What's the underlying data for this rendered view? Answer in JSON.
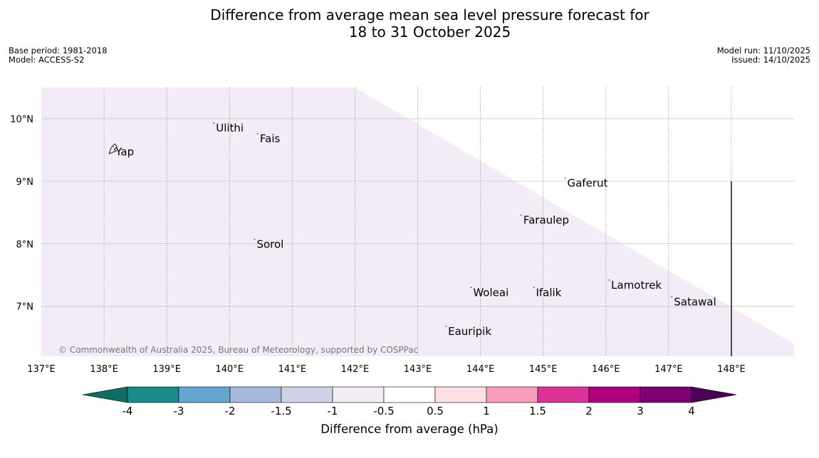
{
  "title": {
    "line1": "Difference from average mean sea level pressure forecast for",
    "line2": "18 to 31 October 2025"
  },
  "meta": {
    "base_period": "Base period: 1981-2018",
    "model": "Model: ACCESS-S2",
    "model_run": "Model run: 11/10/2025",
    "issued": "Issued: 14/10/2025"
  },
  "map": {
    "lon_range": [
      137,
      149
    ],
    "lat_range": [
      6.2,
      10.5
    ],
    "lon_ticks": [
      {
        "value": 137,
        "label": "137°E"
      },
      {
        "value": 138,
        "label": "138°E"
      },
      {
        "value": 139,
        "label": "139°E"
      },
      {
        "value": 140,
        "label": "140°E"
      },
      {
        "value": 141,
        "label": "141°E"
      },
      {
        "value": 142,
        "label": "142°E"
      },
      {
        "value": 143,
        "label": "143°E"
      },
      {
        "value": 144,
        "label": "144°E"
      },
      {
        "value": 145,
        "label": "145°E"
      },
      {
        "value": 146,
        "label": "146°E"
      },
      {
        "value": 147,
        "label": "147°E"
      },
      {
        "value": 148,
        "label": "148°E"
      }
    ],
    "lat_ticks": [
      {
        "value": 10,
        "label": "10°N"
      },
      {
        "value": 9,
        "label": "9°N"
      },
      {
        "value": 8,
        "label": "8°N"
      },
      {
        "value": 7,
        "label": "7°N"
      }
    ],
    "shaded_region": {
      "category": "-1 to -0.5",
      "color": "#f3ebf5",
      "vertices_lonlat": [
        [
          137,
          10.5
        ],
        [
          142,
          10.5
        ],
        [
          149,
          6.4
        ],
        [
          149,
          6.2
        ],
        [
          137,
          6.2
        ]
      ]
    },
    "boundary_line": {
      "lon": 148,
      "lat_from": 6.2,
      "lat_to": 9.0
    },
    "places": [
      {
        "name": "Yap",
        "lon": 138.15,
        "lat": 9.55
      },
      {
        "name": "Ulithi",
        "lon": 139.75,
        "lat": 9.93
      },
      {
        "name": "Fais",
        "lon": 140.45,
        "lat": 9.76
      },
      {
        "name": "Gaferut",
        "lon": 145.35,
        "lat": 9.05
      },
      {
        "name": "Faraulep",
        "lon": 144.65,
        "lat": 8.46
      },
      {
        "name": "Sorol",
        "lon": 140.4,
        "lat": 8.07
      },
      {
        "name": "Lamotrek",
        "lon": 146.05,
        "lat": 7.42
      },
      {
        "name": "Woleai",
        "lon": 143.85,
        "lat": 7.3
      },
      {
        "name": "Ifalik",
        "lon": 144.85,
        "lat": 7.3
      },
      {
        "name": "Satawal",
        "lon": 147.05,
        "lat": 7.15
      },
      {
        "name": "Eauripik",
        "lon": 143.45,
        "lat": 6.68
      }
    ],
    "copyright": "© Commonwealth of Australia 2025, Bureau of Meteorology, supported by COSPPac"
  },
  "colorbar": {
    "title": "Difference from average (hPa)",
    "boundaries": [
      -4,
      -3,
      -2,
      -1.5,
      -1,
      -0.5,
      0.5,
      1,
      1.5,
      2,
      3,
      4
    ],
    "tick_labels": [
      "-4",
      "-3",
      "-2",
      "-1.5",
      "-1",
      "-0.5",
      "0.5",
      "1",
      "1.5",
      "2",
      "3",
      "4"
    ],
    "under_color": "#0f6e64",
    "over_color": "#4b0055",
    "colors": [
      "#1a8c8c",
      "#63a6cf",
      "#a7bade",
      "#d0d2e6",
      "#f3ebf5",
      "#ffffff",
      "#fde0e0",
      "#f89dbb",
      "#db3298",
      "#b0007e",
      "#7c0073"
    ]
  }
}
